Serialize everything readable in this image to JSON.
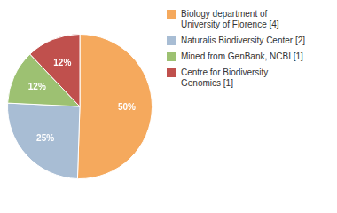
{
  "chart_data": {
    "type": "pie",
    "categories": [
      "Biology department of\nUniversity of Florence [4]",
      "Naturalis Biodiversity Center [2]",
      "Mined from GenBank, NCBI [1]",
      "Centre for Biodiversity\nGenomics [1]"
    ],
    "values": [
      50,
      25,
      12,
      12
    ],
    "value_labels": [
      "50%",
      "25%",
      "12%",
      "12%"
    ],
    "colors": [
      "#F5A95D",
      "#A8BDD4",
      "#9DC172",
      "#C0504D"
    ],
    "data_labels": true,
    "legend": "right"
  }
}
